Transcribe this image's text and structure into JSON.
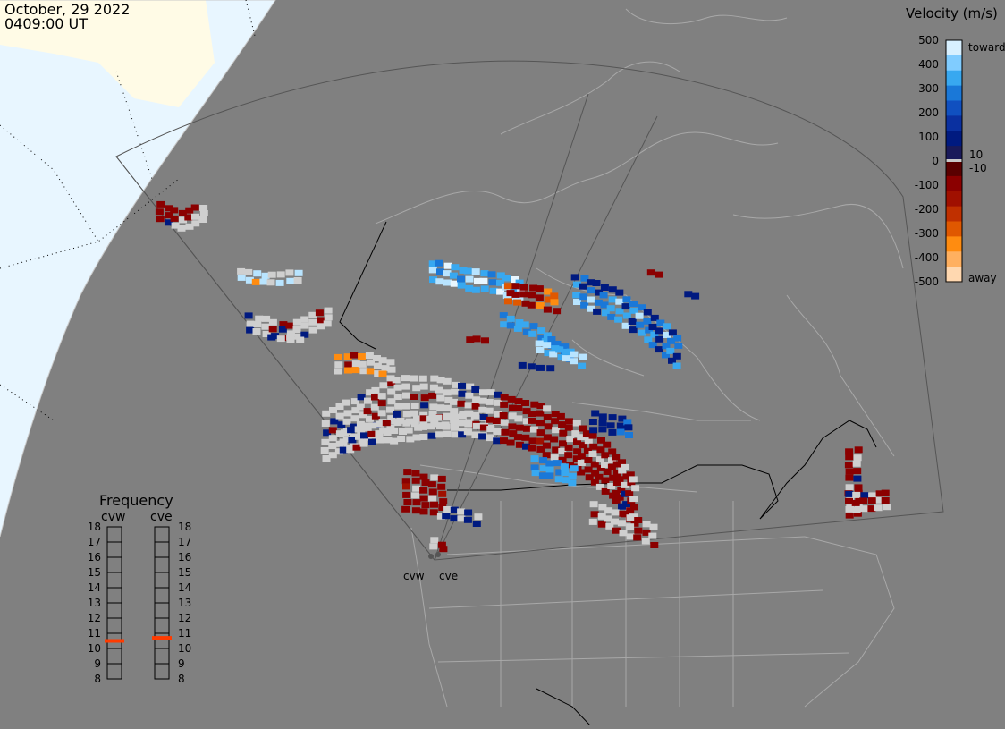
{
  "header": {
    "date": "October, 29 2022",
    "time": "0409:00 UT"
  },
  "velocity_legend": {
    "title": "Velocity (m/s)",
    "ticks": [
      "500",
      "400",
      "300",
      "200",
      "100",
      "0",
      "-100",
      "-200",
      "-300",
      "-400",
      "-500"
    ],
    "toward_label": "toward",
    "away_label": "away",
    "plus_threshold": "10",
    "minus_threshold": "-10",
    "colors_top_to_bottom": [
      "#d8f0ff",
      "#80ccff",
      "#38a8f0",
      "#1a78d8",
      "#1050c0",
      "#0a30a0",
      "#001a80",
      "#1a1a5a",
      "#5a0000",
      "#8b0000",
      "#a01000",
      "#c03000",
      "#e05800",
      "#ff8c10",
      "#ffb060",
      "#ffd8b0"
    ]
  },
  "frequency_panel": {
    "title": "Frequency",
    "radars": [
      {
        "name": "cvw",
        "frequency": 10.5
      },
      {
        "name": "cve",
        "frequency": 10.7
      }
    ],
    "ticks": [
      "18",
      "17",
      "16",
      "15",
      "14",
      "13",
      "12",
      "11",
      "10",
      "9",
      "8"
    ]
  },
  "radar_sites": [
    {
      "name": "cvw"
    },
    {
      "name": "cve"
    }
  ],
  "colors": {
    "background": "#808080",
    "land_lines": "#a8a8a8",
    "border_lines": "#000000",
    "day_region": "#e6f6ff",
    "ice_region": "#fffbe6",
    "ground_scatter": "#cfcfcf",
    "frequency_marker": "#ff3b00"
  }
}
